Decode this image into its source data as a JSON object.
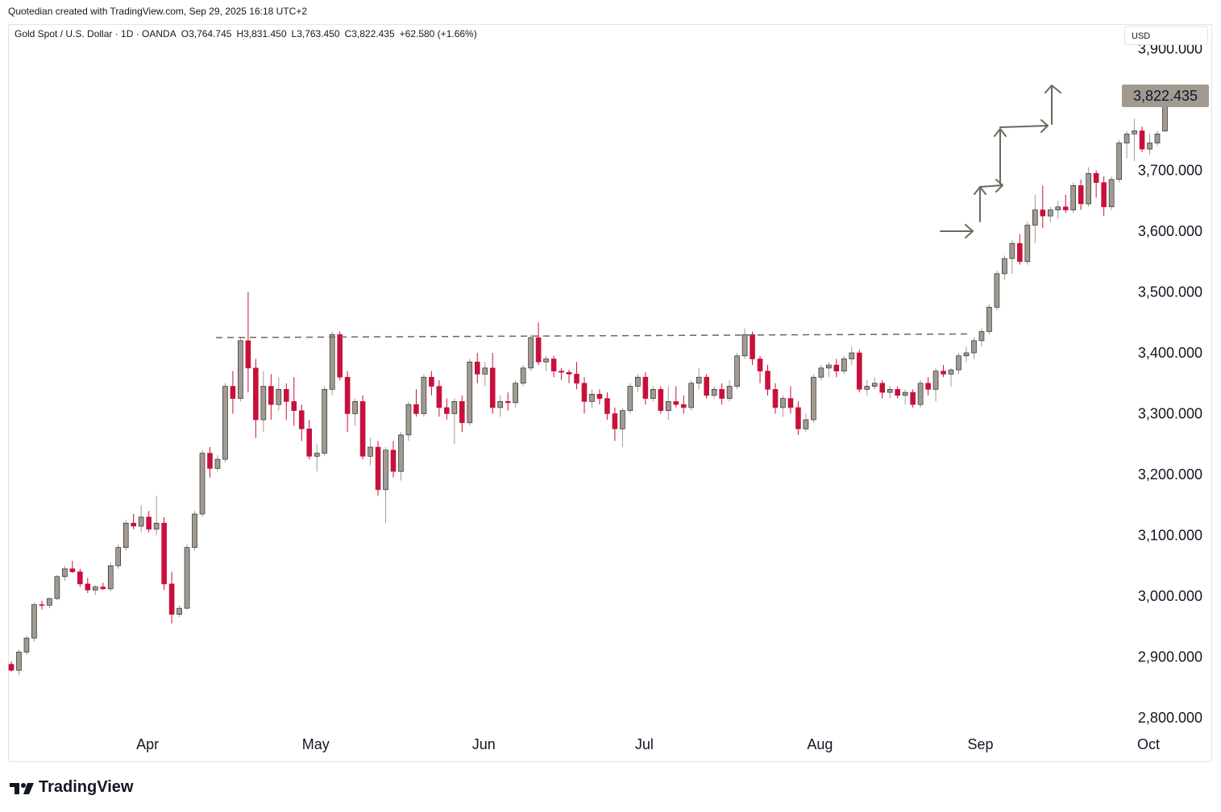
{
  "header": {
    "created_by": "Quotedian created with TradingView.com, Sep 29, 2025 16:18 UTC+2"
  },
  "legend": {
    "symbol": "Gold Spot / U.S. Dollar · 1D · OANDA",
    "open": "O3,764.745",
    "high": "H3,831.450",
    "low": "L3,763.450",
    "close": "C3,822.435",
    "change": "+62.580 (+1.66%)"
  },
  "currency_button": {
    "label": "USD"
  },
  "price_tag": {
    "label": "3,822.435",
    "value": 3822.435
  },
  "brand": {
    "name": "TradingView"
  },
  "colors": {
    "up": "#a29a90",
    "down": "#c8103b",
    "tag_bg": "#a29a90",
    "arrow": "#6f665d",
    "dashed": "#6f665d"
  },
  "chart_data": {
    "type": "candlestick",
    "title": "Gold Spot / U.S. Dollar",
    "interval": "1D",
    "ylim": [
      2750,
      3920
    ],
    "y_ticks": [
      {
        "value": 2800,
        "label": "2,800.000"
      },
      {
        "value": 2900,
        "label": "2,900.000"
      },
      {
        "value": 3000,
        "label": "3,000.000"
      },
      {
        "value": 3100,
        "label": "3,100.000"
      },
      {
        "value": 3200,
        "label": "3,200.000"
      },
      {
        "value": 3300,
        "label": "3,300.000"
      },
      {
        "value": 3400,
        "label": "3,400.000"
      },
      {
        "value": 3500,
        "label": "3,500.000"
      },
      {
        "value": 3600,
        "label": "3,600.000"
      },
      {
        "value": 3700,
        "label": "3,700.000"
      },
      {
        "value": 3900,
        "label": "3,900.000"
      }
    ],
    "x_ticks": [
      {
        "index": 17,
        "label": "Apr"
      },
      {
        "index": 39,
        "label": "May"
      },
      {
        "index": 61,
        "label": "Jun"
      },
      {
        "index": 82,
        "label": "Jul"
      },
      {
        "index": 105,
        "label": "Aug"
      },
      {
        "index": 126,
        "label": "Sep"
      },
      {
        "index": 148,
        "label": "Oct"
      }
    ],
    "resistance_level": 3430,
    "candles": [
      [
        2888,
        2893,
        2876,
        2878
      ],
      [
        2878,
        2912,
        2870,
        2908
      ],
      [
        2908,
        2935,
        2903,
        2931
      ],
      [
        2931,
        2990,
        2925,
        2986
      ],
      [
        2986,
        2992,
        2978,
        2985
      ],
      [
        2985,
        2998,
        2980,
        2996
      ],
      [
        2996,
        3035,
        2993,
        3032
      ],
      [
        3032,
        3050,
        3025,
        3045
      ],
      [
        3045,
        3058,
        3038,
        3040
      ],
      [
        3040,
        3045,
        3015,
        3020
      ],
      [
        3020,
        3030,
        3005,
        3010
      ],
      [
        3010,
        3018,
        3002,
        3015
      ],
      [
        3015,
        3022,
        3010,
        3012
      ],
      [
        3012,
        3055,
        3008,
        3050
      ],
      [
        3050,
        3085,
        3045,
        3080
      ],
      [
        3080,
        3125,
        3075,
        3120
      ],
      [
        3120,
        3135,
        3110,
        3115
      ],
      [
        3115,
        3150,
        3105,
        3130
      ],
      [
        3130,
        3140,
        3105,
        3110
      ],
      [
        3110,
        3165,
        3100,
        3120
      ],
      [
        3120,
        3130,
        3010,
        3020
      ],
      [
        3020,
        3040,
        2955,
        2970
      ],
      [
        2970,
        2985,
        2965,
        2980
      ],
      [
        2980,
        3085,
        2978,
        3080
      ],
      [
        3080,
        3140,
        3075,
        3135
      ],
      [
        3135,
        3240,
        3130,
        3235
      ],
      [
        3235,
        3245,
        3195,
        3210
      ],
      [
        3210,
        3232,
        3205,
        3225
      ],
      [
        3225,
        3350,
        3220,
        3345
      ],
      [
        3345,
        3370,
        3300,
        3325
      ],
      [
        3325,
        3425,
        3320,
        3420
      ],
      [
        3420,
        3500,
        3335,
        3375
      ],
      [
        3375,
        3390,
        3260,
        3290
      ],
      [
        3290,
        3370,
        3270,
        3345
      ],
      [
        3345,
        3365,
        3290,
        3315
      ],
      [
        3315,
        3360,
        3305,
        3340
      ],
      [
        3340,
        3350,
        3290,
        3320
      ],
      [
        3320,
        3360,
        3280,
        3305
      ],
      [
        3305,
        3315,
        3255,
        3275
      ],
      [
        3275,
        3290,
        3225,
        3230
      ],
      [
        3230,
        3250,
        3205,
        3235
      ],
      [
        3235,
        3345,
        3230,
        3340
      ],
      [
        3340,
        3435,
        3330,
        3430
      ],
      [
        3430,
        3435,
        3355,
        3360
      ],
      [
        3360,
        3370,
        3270,
        3300
      ],
      [
        3300,
        3325,
        3280,
        3320
      ],
      [
        3320,
        3330,
        3225,
        3230
      ],
      [
        3230,
        3260,
        3215,
        3245
      ],
      [
        3245,
        3255,
        3165,
        3175
      ],
      [
        3175,
        3245,
        3120,
        3240
      ],
      [
        3240,
        3255,
        3195,
        3205
      ],
      [
        3205,
        3270,
        3190,
        3265
      ],
      [
        3265,
        3320,
        3255,
        3315
      ],
      [
        3315,
        3340,
        3295,
        3300
      ],
      [
        3300,
        3365,
        3295,
        3360
      ],
      [
        3360,
        3370,
        3330,
        3345
      ],
      [
        3345,
        3355,
        3295,
        3310
      ],
      [
        3310,
        3325,
        3290,
        3300
      ],
      [
        3300,
        3325,
        3250,
        3320
      ],
      [
        3320,
        3330,
        3270,
        3285
      ],
      [
        3285,
        3390,
        3280,
        3385
      ],
      [
        3385,
        3400,
        3350,
        3365
      ],
      [
        3365,
        3385,
        3345,
        3375
      ],
      [
        3375,
        3400,
        3300,
        3310
      ],
      [
        3310,
        3330,
        3295,
        3320
      ],
      [
        3320,
        3335,
        3305,
        3318
      ],
      [
        3318,
        3355,
        3310,
        3350
      ],
      [
        3350,
        3380,
        3345,
        3375
      ],
      [
        3375,
        3430,
        3370,
        3425
      ],
      [
        3425,
        3450,
        3380,
        3385
      ],
      [
        3385,
        3395,
        3370,
        3390
      ],
      [
        3390,
        3395,
        3360,
        3370
      ],
      [
        3370,
        3375,
        3355,
        3368
      ],
      [
        3368,
        3372,
        3350,
        3365
      ],
      [
        3365,
        3385,
        3340,
        3350
      ],
      [
        3350,
        3360,
        3300,
        3320
      ],
      [
        3320,
        3340,
        3310,
        3332
      ],
      [
        3332,
        3340,
        3315,
        3325
      ],
      [
        3325,
        3335,
        3290,
        3300
      ],
      [
        3300,
        3310,
        3255,
        3275
      ],
      [
        3275,
        3310,
        3245,
        3305
      ],
      [
        3305,
        3350,
        3300,
        3345
      ],
      [
        3345,
        3365,
        3335,
        3360
      ],
      [
        3360,
        3368,
        3315,
        3325
      ],
      [
        3325,
        3345,
        3320,
        3340
      ],
      [
        3340,
        3345,
        3300,
        3305
      ],
      [
        3305,
        3345,
        3290,
        3320
      ],
      [
        3320,
        3345,
        3310,
        3315
      ],
      [
        3315,
        3330,
        3300,
        3310
      ],
      [
        3310,
        3355,
        3305,
        3350
      ],
      [
        3350,
        3375,
        3340,
        3360
      ],
      [
        3360,
        3365,
        3325,
        3330
      ],
      [
        3330,
        3345,
        3325,
        3340
      ],
      [
        3340,
        3350,
        3315,
        3325
      ],
      [
        3325,
        3355,
        3320,
        3345
      ],
      [
        3345,
        3400,
        3340,
        3395
      ],
      [
        3395,
        3440,
        3390,
        3430
      ],
      [
        3430,
        3435,
        3380,
        3390
      ],
      [
        3390,
        3395,
        3350,
        3370
      ],
      [
        3370,
        3380,
        3330,
        3340
      ],
      [
        3340,
        3350,
        3300,
        3310
      ],
      [
        3310,
        3330,
        3295,
        3325
      ],
      [
        3325,
        3345,
        3300,
        3310
      ],
      [
        3310,
        3320,
        3265,
        3275
      ],
      [
        3275,
        3300,
        3270,
        3290
      ],
      [
        3290,
        3365,
        3285,
        3360
      ],
      [
        3360,
        3380,
        3355,
        3375
      ],
      [
        3375,
        3385,
        3360,
        3380
      ],
      [
        3380,
        3390,
        3360,
        3370
      ],
      [
        3370,
        3395,
        3365,
        3390
      ],
      [
        3390,
        3410,
        3380,
        3400
      ],
      [
        3400,
        3405,
        3335,
        3340
      ],
      [
        3340,
        3355,
        3330,
        3345
      ],
      [
        3345,
        3360,
        3340,
        3350
      ],
      [
        3350,
        3355,
        3325,
        3335
      ],
      [
        3335,
        3345,
        3325,
        3340
      ],
      [
        3340,
        3345,
        3325,
        3330
      ],
      [
        3330,
        3340,
        3315,
        3335
      ],
      [
        3335,
        3340,
        3310,
        3315
      ],
      [
        3315,
        3355,
        3310,
        3350
      ],
      [
        3350,
        3360,
        3330,
        3340
      ],
      [
        3340,
        3375,
        3320,
        3370
      ],
      [
        3370,
        3380,
        3360,
        3365
      ],
      [
        3365,
        3375,
        3345,
        3372
      ],
      [
        3372,
        3400,
        3365,
        3395
      ],
      [
        3395,
        3410,
        3385,
        3400
      ],
      [
        3400,
        3425,
        3390,
        3420
      ],
      [
        3420,
        3440,
        3410,
        3435
      ],
      [
        3435,
        3480,
        3430,
        3475
      ],
      [
        3475,
        3535,
        3470,
        3530
      ],
      [
        3530,
        3560,
        3520,
        3555
      ],
      [
        3555,
        3585,
        3530,
        3580
      ],
      [
        3580,
        3595,
        3545,
        3550
      ],
      [
        3550,
        3615,
        3545,
        3610
      ],
      [
        3610,
        3660,
        3580,
        3635
      ],
      [
        3635,
        3675,
        3605,
        3625
      ],
      [
        3625,
        3640,
        3615,
        3635
      ],
      [
        3635,
        3650,
        3620,
        3640
      ],
      [
        3640,
        3660,
        3630,
        3635
      ],
      [
        3635,
        3680,
        3630,
        3675
      ],
      [
        3675,
        3685,
        3635,
        3645
      ],
      [
        3645,
        3705,
        3640,
        3695
      ],
      [
        3695,
        3700,
        3655,
        3680
      ],
      [
        3680,
        3690,
        3625,
        3640
      ],
      [
        3640,
        3690,
        3635,
        3685
      ],
      [
        3685,
        3750,
        3680,
        3745
      ],
      [
        3745,
        3765,
        3720,
        3760
      ],
      [
        3760,
        3785,
        3715,
        3765
      ],
      [
        3765,
        3772,
        3730,
        3735
      ],
      [
        3735,
        3760,
        3725,
        3745
      ],
      [
        3745,
        3765,
        3740,
        3760
      ],
      [
        3764.745,
        3831.45,
        3763.45,
        3822.435
      ]
    ]
  }
}
